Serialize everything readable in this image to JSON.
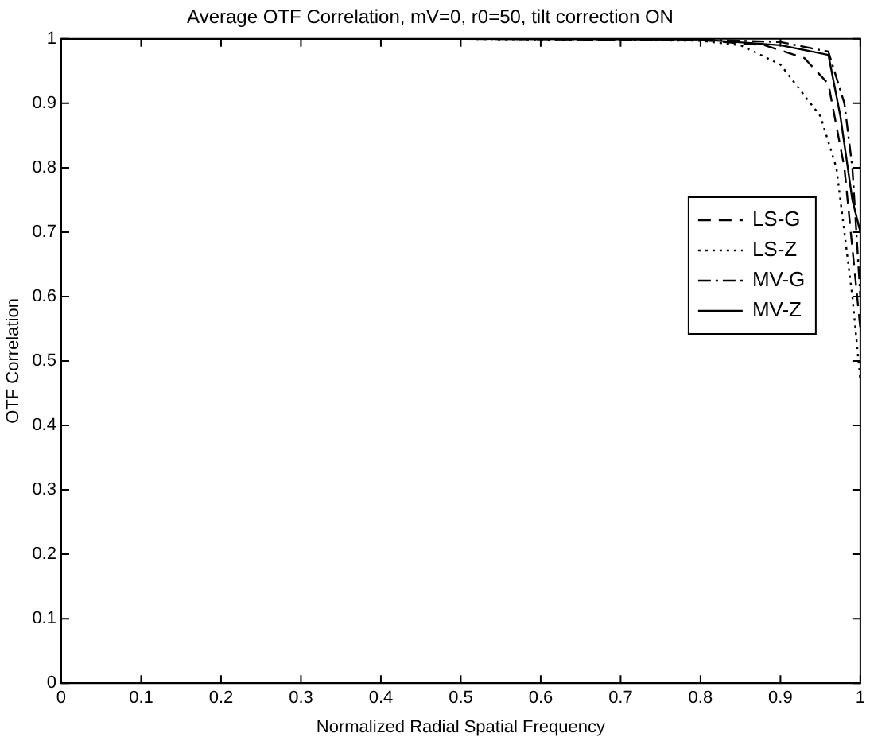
{
  "chart_data": {
    "type": "line",
    "title": "Average OTF Correlation, mV=0, r0=50, tilt correction ON",
    "xlabel": "Normalized Radial Spatial Frequency",
    "ylabel": "OTF Correlation",
    "xlim": [
      0,
      1
    ],
    "ylim": [
      0,
      1
    ],
    "xticks": [
      0,
      0.1,
      0.2,
      0.3,
      0.4,
      0.5,
      0.6,
      0.7,
      0.8,
      0.9,
      1
    ],
    "yticks": [
      0,
      0.1,
      0.2,
      0.3,
      0.4,
      0.5,
      0.6,
      0.7,
      0.8,
      0.9,
      1
    ],
    "grid": false,
    "legend": "right",
    "marker": "none",
    "series": [
      {
        "name": "LS-G",
        "color": "#000000",
        "line_style": "dashed",
        "x": [
          0,
          0.5,
          0.8,
          0.88,
          0.93,
          0.96,
          0.98,
          1
        ],
        "values": [
          1,
          1,
          0.998,
          0.99,
          0.97,
          0.93,
          0.8,
          0.55
        ]
      },
      {
        "name": "LS-Z",
        "color": "#000000",
        "line_style": "dotted",
        "x": [
          0,
          0.5,
          0.8,
          0.85,
          0.9,
          0.95,
          0.97,
          0.99,
          1
        ],
        "values": [
          1,
          1,
          0.997,
          0.99,
          0.96,
          0.88,
          0.8,
          0.6,
          0.47
        ]
      },
      {
        "name": "MV-G",
        "color": "#000000",
        "line_style": "dashdot",
        "x": [
          0,
          0.5,
          0.8,
          0.9,
          0.96,
          0.98,
          0.99,
          1
        ],
        "values": [
          1,
          1,
          0.999,
          0.995,
          0.98,
          0.9,
          0.8,
          0.6
        ]
      },
      {
        "name": "MV-Z",
        "color": "#000000",
        "line_style": "solid",
        "x": [
          0,
          0.5,
          0.8,
          0.9,
          0.96,
          0.975,
          0.99,
          1
        ],
        "values": [
          1,
          1,
          0.999,
          0.99,
          0.975,
          0.88,
          0.75,
          0.7
        ]
      }
    ]
  }
}
